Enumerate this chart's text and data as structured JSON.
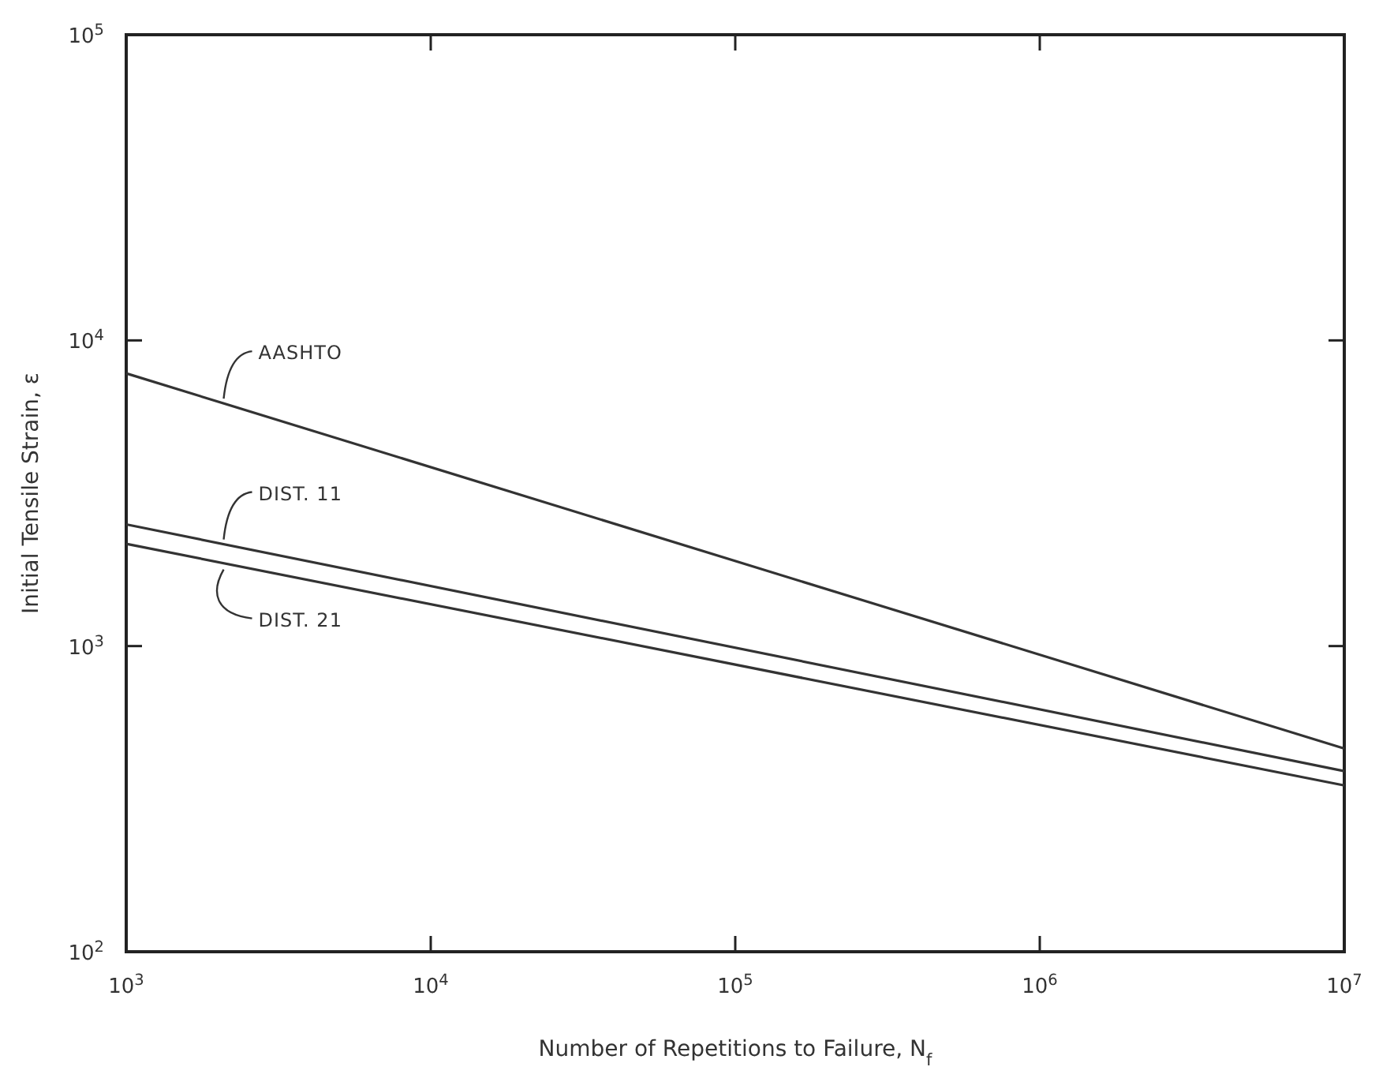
{
  "chart_data": {
    "type": "line",
    "xlabel": "Number of Repetitions to Failure, N$_{f}$",
    "ylabel": "Initial Tensile Strain, ε",
    "log": "xy",
    "grid": false,
    "marker": "none",
    "line_style": "solid",
    "xlim": [
      1000,
      10000000
    ],
    "ylim": [
      100,
      100000
    ],
    "xticks": [
      {
        "value": 1000,
        "label": "10$^{3}$"
      },
      {
        "value": 10000,
        "label": "10$^{4}$"
      },
      {
        "value": 100000,
        "label": "10$^{5}$"
      },
      {
        "value": 1000000,
        "label": "10$^{6}$"
      },
      {
        "value": 10000000,
        "label": "10$^{7}$"
      }
    ],
    "yticks": [
      {
        "value": 100,
        "label": "10$^{2}$"
      },
      {
        "value": 1000,
        "label": "10$^{3}$"
      },
      {
        "value": 10000,
        "label": "10$^{4}$"
      },
      {
        "value": 100000,
        "label": "10$^{5}$"
      }
    ],
    "x": [
      1000,
      10000000
    ],
    "series": [
      {
        "name": "AASHTO",
        "color": "#333333",
        "values": [
          7800,
          462
        ]
      },
      {
        "name": "DIST. 11",
        "color": "#333333",
        "values": [
          2500,
          390
        ]
      },
      {
        "name": "DIST. 21",
        "color": "#333333",
        "values": [
          2160,
          350
        ]
      }
    ]
  }
}
